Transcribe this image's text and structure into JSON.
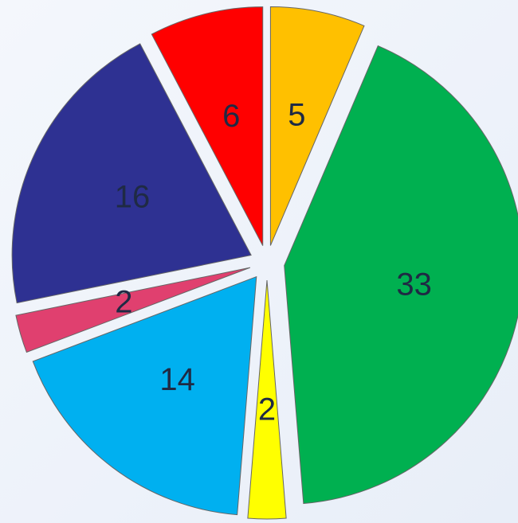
{
  "chart_data": {
    "type": "pie",
    "categories": [
      null,
      null,
      null,
      null,
      null,
      null,
      null
    ],
    "values": [
      5,
      33,
      2,
      14,
      2,
      16,
      6
    ],
    "colors": [
      "#ffc000",
      "#00b050",
      "#ffff00",
      "#00b0f0",
      "#e0406f",
      "#2e3192",
      "#ff0000"
    ]
  }
}
